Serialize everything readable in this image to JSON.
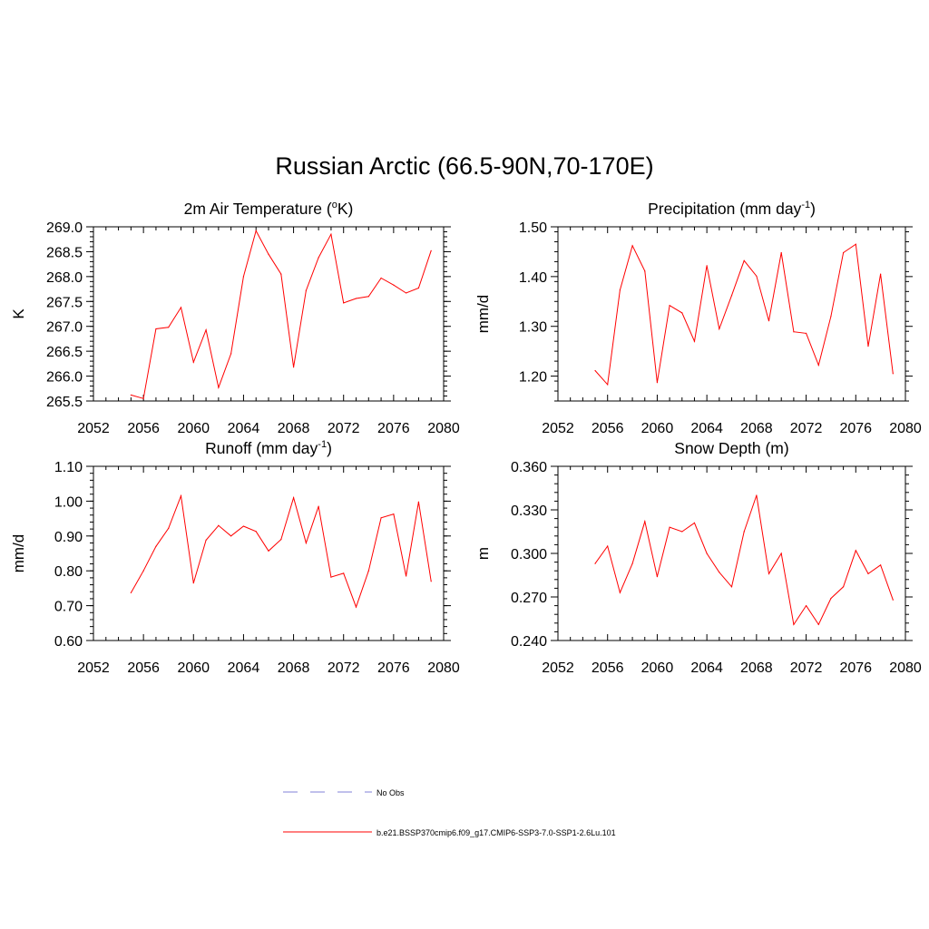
{
  "figure": {
    "title": "Russian Arctic (66.5-90N,70-170E)"
  },
  "chart_data": [
    {
      "type": "line",
      "title": "2m Air Temperature (",
      "title_sup": "o",
      "title_end": "K)",
      "ylabel": "K",
      "xlim": [
        2052,
        2080
      ],
      "ylim": [
        265.5,
        269.0
      ],
      "xticks": [
        2052,
        2056,
        2060,
        2064,
        2068,
        2072,
        2076,
        2080
      ],
      "yticks": [
        265.5,
        266.0,
        266.5,
        267.0,
        267.5,
        268.0,
        268.5,
        269.0
      ],
      "ytick_labels": [
        "265.5",
        "266.0",
        "266.5",
        "267.0",
        "267.5",
        "268.0",
        "268.5",
        "269.0"
      ],
      "x": [
        2055,
        2056,
        2057,
        2058,
        2059,
        2060,
        2061,
        2062,
        2063,
        2064,
        2065,
        2066,
        2067,
        2068,
        2069,
        2070,
        2071,
        2072,
        2073,
        2074,
        2075,
        2076,
        2077,
        2078,
        2079
      ],
      "series": [
        {
          "name": "b.e21.BSSP370cmip6.f09_g17.CMIP6-SSP3-7.0-SSP1-2.6Lu.101",
          "values": [
            265.62,
            265.55,
            266.95,
            266.98,
            267.38,
            266.28,
            266.93,
            265.77,
            266.45,
            268.0,
            268.92,
            268.45,
            268.05,
            266.18,
            267.72,
            268.38,
            268.85,
            267.47,
            267.56,
            267.6,
            267.97,
            267.83,
            267.67,
            267.77,
            268.52
          ]
        }
      ]
    },
    {
      "type": "line",
      "title": "Precipitation (mm day",
      "title_sup": "-1",
      "title_end": ")",
      "ylabel": "mm/d",
      "xlim": [
        2052,
        2080
      ],
      "ylim": [
        1.15,
        1.5
      ],
      "xticks": [
        2052,
        2056,
        2060,
        2064,
        2068,
        2072,
        2076,
        2080
      ],
      "yticks": [
        1.2,
        1.3,
        1.4,
        1.5
      ],
      "ytick_labels": [
        "1.20",
        "1.30",
        "1.40",
        "1.50"
      ],
      "x": [
        2055,
        2056,
        2057,
        2058,
        2059,
        2060,
        2061,
        2062,
        2063,
        2064,
        2065,
        2066,
        2067,
        2068,
        2069,
        2070,
        2071,
        2072,
        2073,
        2074,
        2075,
        2076,
        2077,
        2078,
        2079
      ],
      "series": [
        {
          "name": "b.e21.BSSP370cmip6.f09_g17.CMIP6-SSP3-7.0-SSP1-2.6Lu.101",
          "values": [
            1.211,
            1.183,
            1.373,
            1.462,
            1.411,
            1.187,
            1.342,
            1.327,
            1.27,
            1.422,
            1.295,
            1.362,
            1.432,
            1.401,
            1.311,
            1.448,
            1.289,
            1.286,
            1.222,
            1.32,
            1.448,
            1.465,
            1.26,
            1.405,
            1.205
          ]
        }
      ]
    },
    {
      "type": "line",
      "title": "Runoff (mm day",
      "title_sup": "-1",
      "title_end": ")",
      "ylabel": "mm/d",
      "xlim": [
        2052,
        2080
      ],
      "ylim": [
        0.6,
        1.1
      ],
      "xticks": [
        2052,
        2056,
        2060,
        2064,
        2068,
        2072,
        2076,
        2080
      ],
      "yticks": [
        0.6,
        0.7,
        0.8,
        0.9,
        1.0,
        1.1
      ],
      "ytick_labels": [
        "0.60",
        "0.70",
        "0.80",
        "0.90",
        "1.00",
        "1.10"
      ],
      "x": [
        2055,
        2056,
        2057,
        2058,
        2059,
        2060,
        2061,
        2062,
        2063,
        2064,
        2065,
        2066,
        2067,
        2068,
        2069,
        2070,
        2071,
        2072,
        2073,
        2074,
        2075,
        2076,
        2077,
        2078,
        2079
      ],
      "series": [
        {
          "name": "b.e21.BSSP370cmip6.f09_g17.CMIP6-SSP3-7.0-SSP1-2.6Lu.101",
          "values": [
            0.737,
            0.8,
            0.87,
            0.922,
            1.015,
            0.765,
            0.888,
            0.93,
            0.9,
            0.928,
            0.913,
            0.857,
            0.89,
            1.01,
            0.88,
            0.985,
            0.782,
            0.793,
            0.696,
            0.8,
            0.952,
            0.963,
            0.785,
            0.998,
            0.77
          ]
        }
      ]
    },
    {
      "type": "line",
      "title": "Snow Depth (m)",
      "title_sup": "",
      "title_end": "",
      "ylabel": "m",
      "xlim": [
        2052,
        2080
      ],
      "ylim": [
        0.24,
        0.36
      ],
      "xticks": [
        2052,
        2056,
        2060,
        2064,
        2068,
        2072,
        2076,
        2080
      ],
      "yticks": [
        0.24,
        0.27,
        0.3,
        0.33,
        0.36
      ],
      "ytick_labels": [
        "0.240",
        "0.270",
        "0.300",
        "0.330",
        "0.360"
      ],
      "x": [
        2055,
        2056,
        2057,
        2058,
        2059,
        2060,
        2061,
        2062,
        2063,
        2064,
        2065,
        2066,
        2067,
        2068,
        2069,
        2070,
        2071,
        2072,
        2073,
        2074,
        2075,
        2076,
        2077,
        2078,
        2079
      ],
      "series": [
        {
          "name": "b.e21.BSSP370cmip6.f09_g17.CMIP6-SSP3-7.0-SSP1-2.6Lu.101",
          "values": [
            0.293,
            0.305,
            0.273,
            0.293,
            0.322,
            0.284,
            0.318,
            0.315,
            0.321,
            0.3,
            0.287,
            0.277,
            0.315,
            0.34,
            0.286,
            0.3,
            0.251,
            0.264,
            0.251,
            0.269,
            0.277,
            0.302,
            0.286,
            0.292,
            0.268
          ]
        }
      ]
    }
  ],
  "legend": {
    "items": [
      {
        "label": "No Obs",
        "color": "#9a9ae0",
        "style": "dashed"
      },
      {
        "label": "b.e21.BSSP370cmip6.f09_g17.CMIP6-SSP3-7.0-SSP1-2.6Lu.101",
        "color": "#ff0000",
        "style": "solid"
      }
    ]
  },
  "colors": {
    "series_line": "#ff0000",
    "axis": "#000000"
  }
}
